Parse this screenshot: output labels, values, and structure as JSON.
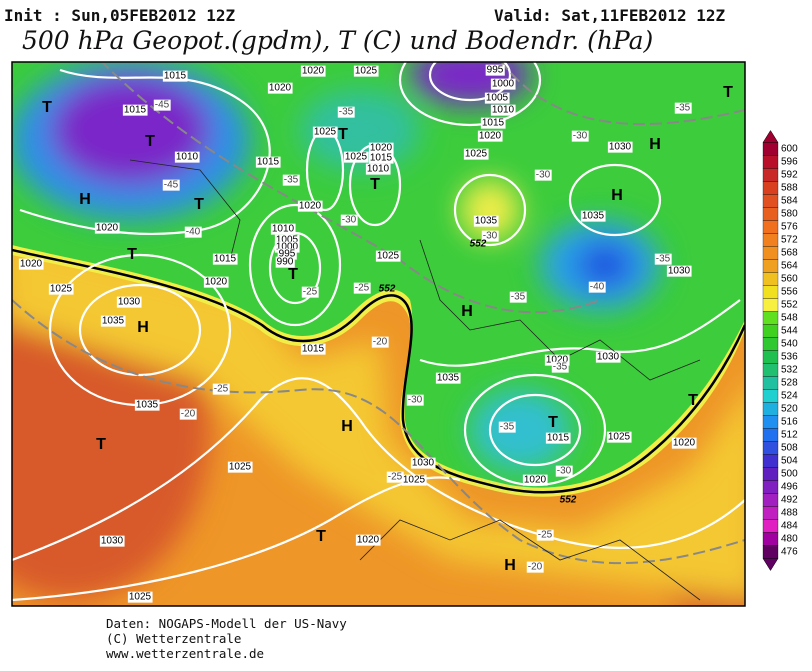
{
  "header": {
    "init": "Init : Sun,05FEB2012 12Z",
    "valid": "Valid: Sat,11FEB2012 12Z",
    "title": "500 hPa Geopot.(gpdm), T (C) und Bodendr. (hPa)"
  },
  "map": {
    "centers": [
      "T",
      "T",
      "H",
      "T",
      "T",
      "H",
      "T",
      "T",
      "T",
      "T",
      "H",
      "T",
      "H",
      "H",
      "T",
      "H",
      "H",
      "T",
      "T"
    ],
    "isobars": [
      "1015",
      "1020",
      "1025",
      "1015",
      "1020",
      "995",
      "1000",
      "1005",
      "1010",
      "1015",
      "1020",
      "1025",
      "1030",
      "1025",
      "1020",
      "1025",
      "1015",
      "1010",
      "1010",
      "1015",
      "1020",
      "1020",
      "1010",
      "1005",
      "1000",
      "995",
      "990",
      "1015",
      "1020",
      "1025",
      "1035",
      "1035",
      "1030",
      "1020",
      "1025",
      "1030",
      "1035",
      "1035",
      "1015",
      "1035",
      "1030",
      "1020",
      "1015",
      "1025",
      "1030",
      "1025",
      "1020",
      "1020",
      "1025",
      "1030",
      "1020",
      "1025"
    ],
    "temps": [
      "-45",
      "-45",
      "-40",
      "-35",
      "-35",
      "-30",
      "-25",
      "-25",
      "-20",
      "-25",
      "-20",
      "-25",
      "-25",
      "-20",
      "-40",
      "-35",
      "-35",
      "-30",
      "-30",
      "-30",
      "-35",
      "-30",
      "-35",
      "-35",
      "-30"
    ],
    "heights": [
      "552",
      "552",
      "552"
    ]
  },
  "colorbar": {
    "values": [
      600,
      596,
      592,
      588,
      584,
      580,
      576,
      572,
      568,
      564,
      560,
      556,
      552,
      548,
      544,
      540,
      536,
      532,
      528,
      524,
      520,
      516,
      512,
      508,
      504,
      500,
      496,
      492,
      488,
      484,
      480,
      476
    ]
  },
  "footer": [
    "Daten: NOGAPS-Modell der US-Navy",
    "(C) Wetterzentrale",
    "www.wetterzentrale.de"
  ]
}
